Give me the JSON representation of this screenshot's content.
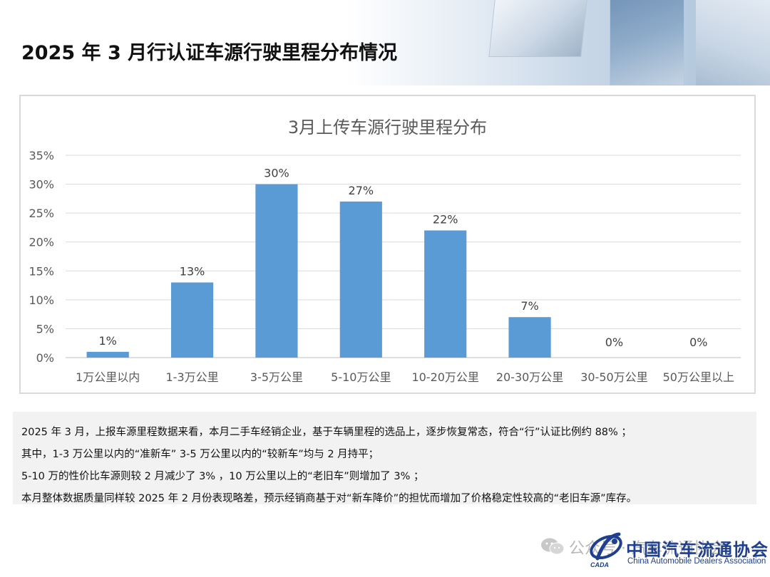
{
  "header": {
    "title": "2025 年 3 月行认证车源行驶里程分布情况"
  },
  "chart_data": {
    "type": "bar",
    "title": "3月上传车源行驶里程分布",
    "categories": [
      "1万公里以内",
      "1-3万公里",
      "3-5万公里",
      "5-10万公里",
      "10-20万公里",
      "20-30万公里",
      "30-50万公里",
      "50万公里以上"
    ],
    "values": [
      1,
      13,
      30,
      27,
      22,
      7,
      0,
      0
    ],
    "data_labels": [
      "1%",
      "13%",
      "30%",
      "27%",
      "22%",
      "7%",
      "0%",
      "0%"
    ],
    "y_ticks": [
      "0%",
      "5%",
      "10%",
      "15%",
      "20%",
      "25%",
      "30%",
      "35%"
    ],
    "ylim": [
      0,
      35
    ],
    "grid": true,
    "bar_color": "#5b9bd5",
    "xlabel": "",
    "ylabel": ""
  },
  "description": {
    "lines": [
      "2025 年 3 月，上报车源里程数据来看，本月二手车经销企业，基于车辆里程的选品上，逐步恢复常态，符合“行”认证比例约 88% ；",
      "其中，1-3 万公里以内的“准新车” 3-5 万公里以内的“较新车”均与 2 月持平；",
      "5-10 万的性价比车源则较 2 月减少了 3% ，10 万公里以上的“老旧车”则增加了 3% ；",
      "本月整体数据质量同样较 2025 年 2 月份表现略差，预示经销商基于对“新车降价”的担忧而增加了价格稳定性较高的“老旧车源”库存。"
    ]
  },
  "footer": {
    "watermark": "公众号 · 汽车流通协会",
    "logo_cn": "中国汽车流通协会",
    "logo_en": "China Automobile Dealers Association",
    "logo_abbr": "CADA",
    "icon": "wechat-icon",
    "brand_color": "#1f3f8f"
  }
}
